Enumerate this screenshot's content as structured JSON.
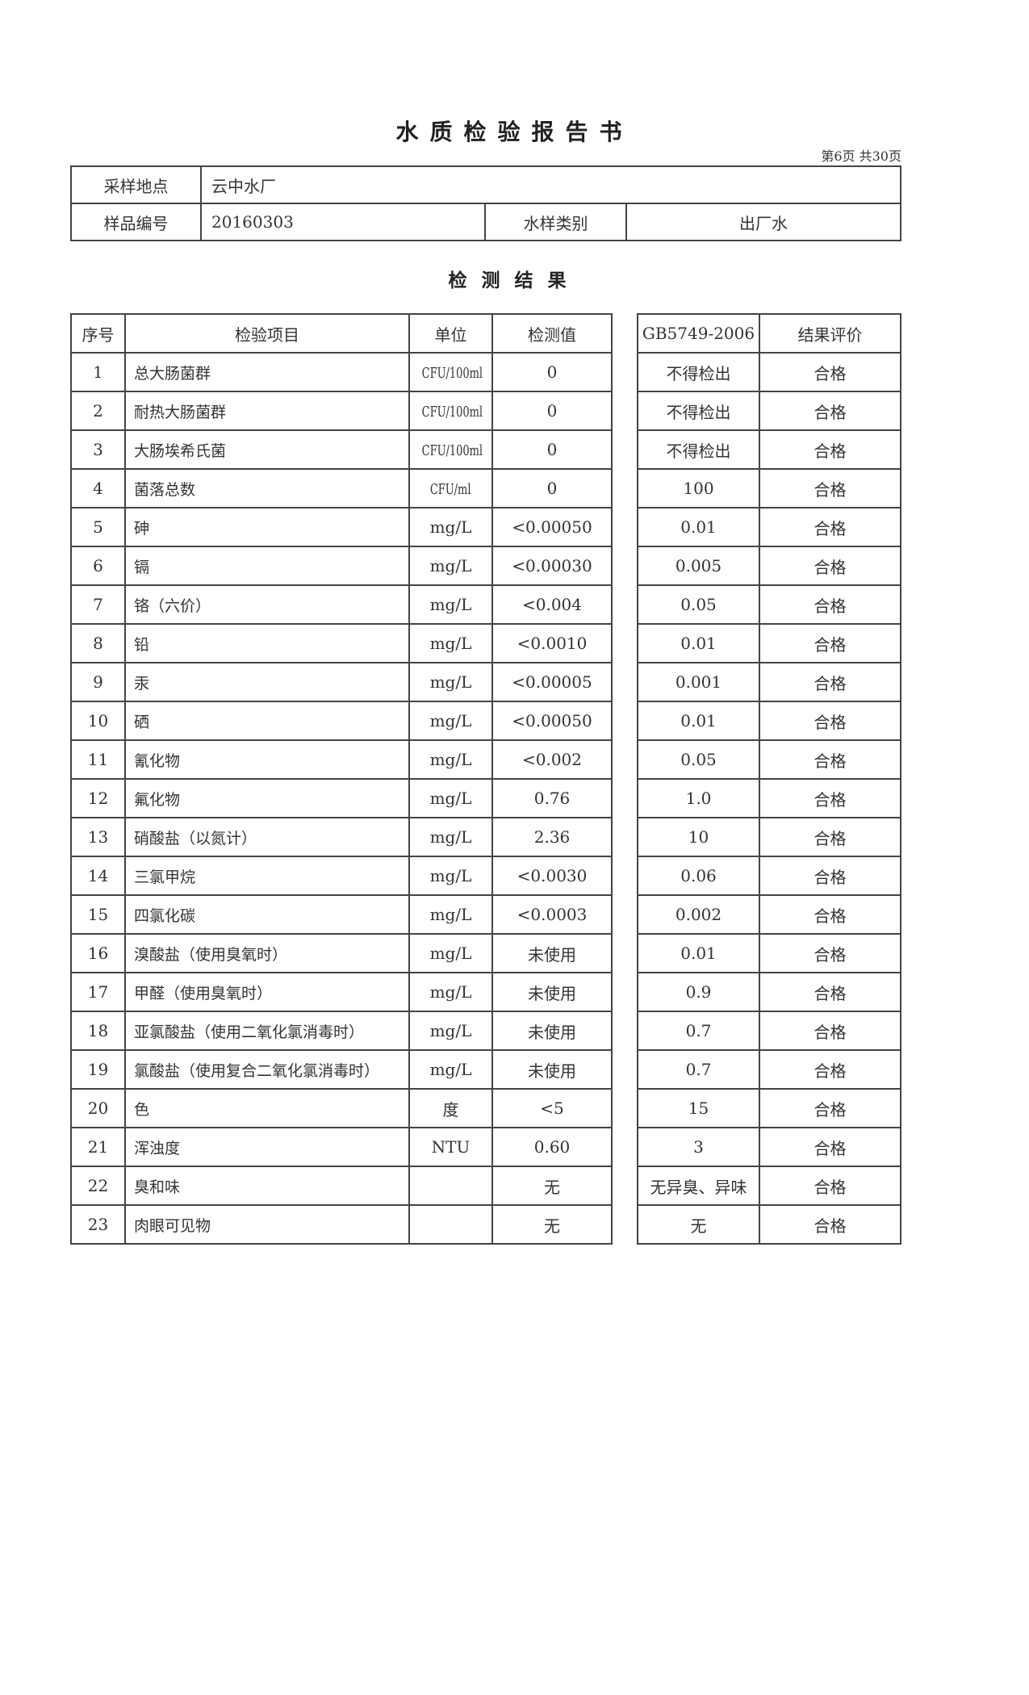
{
  "title": "水质检验报告书",
  "page_indicator": "第6页 共30页",
  "info": {
    "location_label": "采样地点",
    "location": "云中水厂",
    "sample_no_label": "样品编号",
    "sample_no": "20160303",
    "type_label": "水样类别",
    "type": "出厂水"
  },
  "section_title": "检测结果",
  "headers": [
    "序号",
    "检验项目",
    "单位",
    "检测值",
    "GB5749-2006",
    "结果评价"
  ],
  "rows": [
    [
      "1",
      "总大肠菌群",
      "CFU/100ml",
      "0",
      "不得检出",
      "合格"
    ],
    [
      "2",
      "耐热大肠菌群",
      "CFU/100ml",
      "0",
      "不得检出",
      "合格"
    ],
    [
      "3",
      "大肠埃希氏菌",
      "CFU/100ml",
      "0",
      "不得检出",
      "合格"
    ],
    [
      "4",
      "菌落总数",
      "CFU/ml",
      "0",
      "100",
      "合格"
    ],
    [
      "5",
      "砷",
      "mg/L",
      "<0.00050",
      "0.01",
      "合格"
    ],
    [
      "6",
      "镉",
      "mg/L",
      "<0.00030",
      "0.005",
      "合格"
    ],
    [
      "7",
      "铬（六价）",
      "mg/L",
      "<0.004",
      "0.05",
      "合格"
    ],
    [
      "8",
      "铅",
      "mg/L",
      "<0.0010",
      "0.01",
      "合格"
    ],
    [
      "9",
      "汞",
      "mg/L",
      "<0.00005",
      "0.001",
      "合格"
    ],
    [
      "10",
      "硒",
      "mg/L",
      "<0.00050",
      "0.01",
      "合格"
    ],
    [
      "11",
      "氰化物",
      "mg/L",
      "<0.002",
      "0.05",
      "合格"
    ],
    [
      "12",
      "氟化物",
      "mg/L",
      "0.76",
      "1.0",
      "合格"
    ],
    [
      "13",
      "硝酸盐（以氮计）",
      "mg/L",
      "2.36",
      "10",
      "合格"
    ],
    [
      "14",
      "三氯甲烷",
      "mg/L",
      "<0.0030",
      "0.06",
      "合格"
    ],
    [
      "15",
      "四氯化碳",
      "mg/L",
      "<0.0003",
      "0.002",
      "合格"
    ],
    [
      "16",
      "溴酸盐（使用臭氧时）",
      "mg/L",
      "未使用",
      "0.01",
      "合格"
    ],
    [
      "17",
      "甲醛（使用臭氧时）",
      "mg/L",
      "未使用",
      "0.9",
      "合格"
    ],
    [
      "18",
      "亚氯酸盐（使用二氧化氯消毒时）",
      "mg/L",
      "未使用",
      "0.7",
      "合格"
    ],
    [
      "19",
      "氯酸盐（使用复合二氧化氯消毒时）",
      "mg/L",
      "未使用",
      "0.7",
      "合格"
    ],
    [
      "20",
      "色",
      "度",
      "<5",
      "15",
      "合格"
    ],
    [
      "21",
      "浑浊度",
      "NTU",
      "0.60",
      "3",
      "合格"
    ],
    [
      "22",
      "臭和味",
      "",
      "无",
      "无异臭、异味",
      "合格"
    ],
    [
      "23",
      "肉眼可见物",
      "",
      "无",
      "无",
      "合格"
    ]
  ]
}
